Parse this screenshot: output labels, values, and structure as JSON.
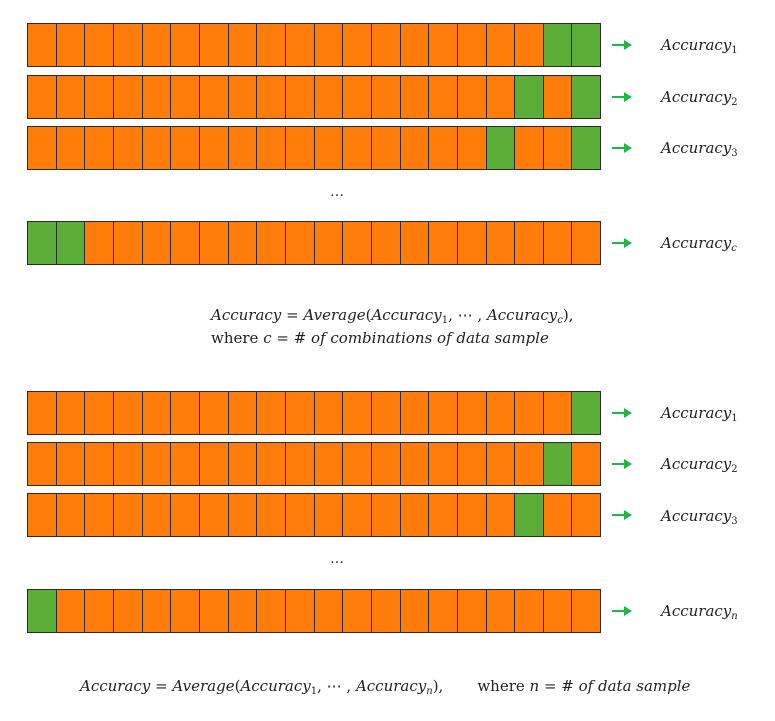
{
  "colors": {
    "train": "#ff7c0b",
    "test": "#5aad36",
    "arrow": "#21b54a"
  },
  "cells_per_row": 20,
  "section1": {
    "rows": [
      {
        "test_cells": [
          19,
          20
        ],
        "label_base": "Accuracy",
        "label_sub": "1"
      },
      {
        "test_cells": [
          18,
          20
        ],
        "label_base": "Accuracy",
        "label_sub": "2"
      },
      {
        "test_cells": [
          17,
          20
        ],
        "label_base": "Accuracy",
        "label_sub": "3"
      },
      {
        "test_cells": [
          1,
          2
        ],
        "label_base": "Accuracy",
        "label_sub": "c"
      }
    ],
    "ellipsis": "…",
    "formula_line1": {
      "lhs": "Accuracy",
      "eq": " = ",
      "func": "Average",
      "open": "(",
      "arg1": "Accuracy",
      "arg1_sub": "1",
      "mid": ", ⋯ , ",
      "arg2": "Accuracy",
      "arg2_sub": "c",
      "close": "),"
    },
    "formula_line2": {
      "where": "where ",
      "var": "c",
      "rest": " = # of combinations of data sample"
    }
  },
  "section2": {
    "rows": [
      {
        "test_cells": [
          20
        ],
        "label_base": "Accuracy",
        "label_sub": "1"
      },
      {
        "test_cells": [
          19
        ],
        "label_base": "Accuracy",
        "label_sub": "2"
      },
      {
        "test_cells": [
          18
        ],
        "label_base": "Accuracy",
        "label_sub": "3"
      },
      {
        "test_cells": [
          1
        ],
        "label_base": "Accuracy",
        "label_sub": "n"
      }
    ],
    "ellipsis": "…",
    "formula": {
      "lhs": "Accuracy",
      "eq": " = ",
      "func": "Average",
      "open": "(",
      "arg1": "Accuracy",
      "arg1_sub": "1",
      "mid": ", ⋯ , ",
      "arg2": "Accuracy",
      "arg2_sub": "n",
      "close": "),",
      "where": "where ",
      "var": "n",
      "rest": " = # of data sample"
    }
  }
}
